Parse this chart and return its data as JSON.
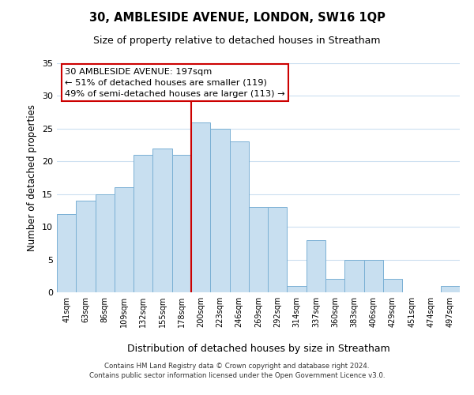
{
  "title": "30, AMBLESIDE AVENUE, LONDON, SW16 1QP",
  "subtitle": "Size of property relative to detached houses in Streatham",
  "xlabel": "Distribution of detached houses by size in Streatham",
  "ylabel": "Number of detached properties",
  "bar_labels": [
    "41sqm",
    "63sqm",
    "86sqm",
    "109sqm",
    "132sqm",
    "155sqm",
    "178sqm",
    "200sqm",
    "223sqm",
    "246sqm",
    "269sqm",
    "292sqm",
    "314sqm",
    "337sqm",
    "360sqm",
    "383sqm",
    "406sqm",
    "429sqm",
    "451sqm",
    "474sqm",
    "497sqm"
  ],
  "bar_values": [
    12,
    14,
    15,
    16,
    21,
    22,
    21,
    26,
    25,
    23,
    13,
    13,
    1,
    8,
    2,
    5,
    5,
    2,
    0,
    0,
    1
  ],
  "bar_color": "#c8dff0",
  "bar_edge_color": "#7ab0d4",
  "reference_line_color": "#cc0000",
  "annotation_title": "30 AMBLESIDE AVENUE: 197sqm",
  "annotation_line1": "← 51% of detached houses are smaller (119)",
  "annotation_line2": "49% of semi-detached houses are larger (113) →",
  "annotation_box_color": "#ffffff",
  "annotation_box_edge_color": "#cc0000",
  "ylim": [
    0,
    35
  ],
  "yticks": [
    0,
    5,
    10,
    15,
    20,
    25,
    30,
    35
  ],
  "footer_line1": "Contains HM Land Registry data © Crown copyright and database right 2024.",
  "footer_line2": "Contains public sector information licensed under the Open Government Licence v3.0.",
  "bg_color": "#ffffff",
  "grid_color": "#ccdff0"
}
